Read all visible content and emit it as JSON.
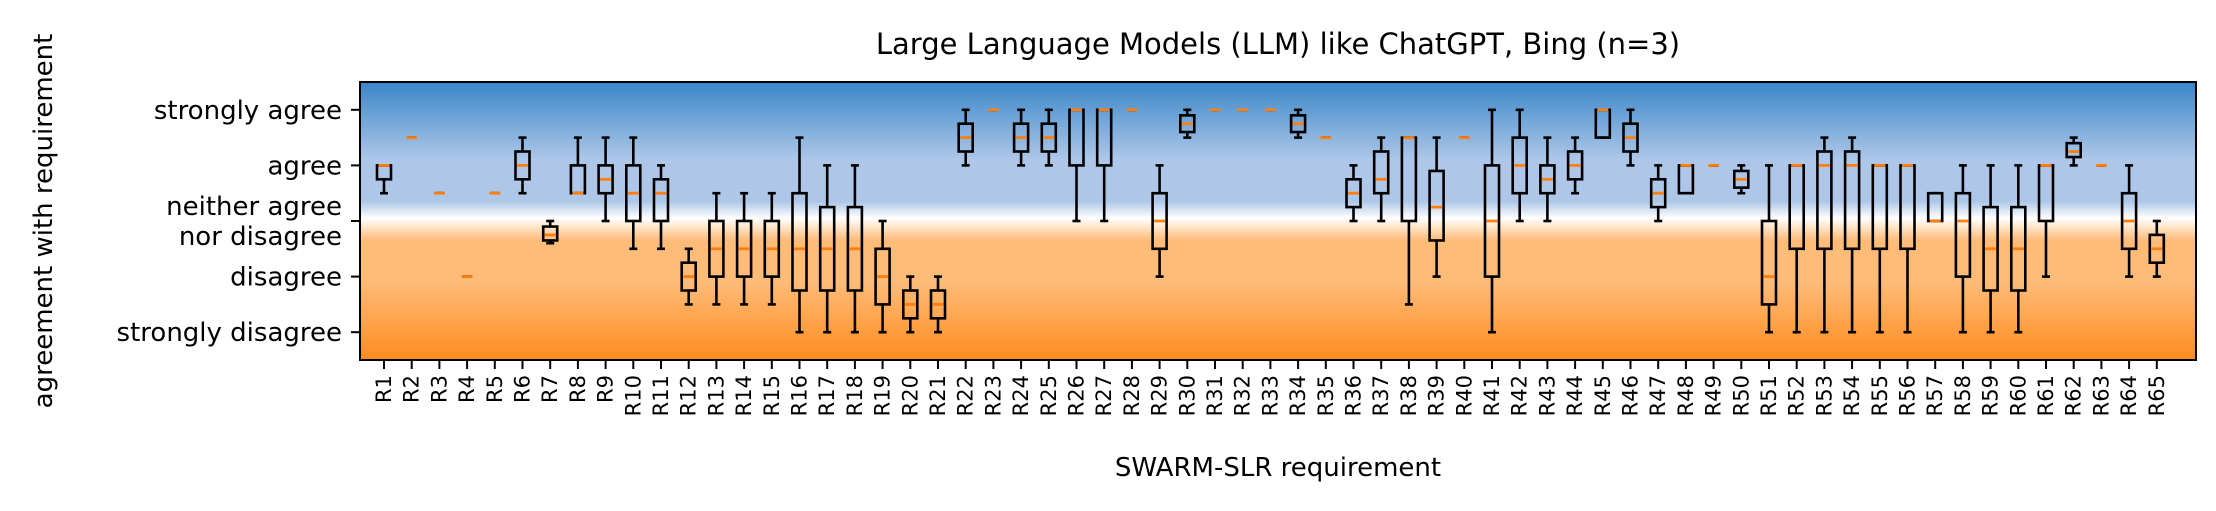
{
  "chart_data": {
    "type": "box",
    "title": "Large Language Models (LLM) like ChatGPT, Bing (n=3)",
    "xlabel": "SWARM-SLR requirement",
    "ylabel": "agreement with requirement",
    "ylim": [
      0.5,
      5.5
    ],
    "y_ticks": [
      {
        "value": 1,
        "lines": [
          "strongly disagree"
        ]
      },
      {
        "value": 2,
        "lines": [
          "disagree"
        ]
      },
      {
        "value": 3,
        "lines": [
          "neither agree",
          "nor disagree"
        ]
      },
      {
        "value": 4,
        "lines": [
          "agree"
        ]
      },
      {
        "value": 5,
        "lines": [
          "strongly agree"
        ]
      }
    ],
    "background_gradient": {
      "top": "#3a86c8",
      "upper": "#aec7e8",
      "middle": "#ffffff",
      "lower": "#ffbb78",
      "bottom": "#ff8c1f"
    },
    "median_color": "#ff7f0e",
    "box_color": "#000000",
    "categories": [
      "R1",
      "R2",
      "R3",
      "R4",
      "R5",
      "R6",
      "R7",
      "R8",
      "R9",
      "R10",
      "R11",
      "R12",
      "R13",
      "R14",
      "R15",
      "R16",
      "R17",
      "R18",
      "R19",
      "R20",
      "R21",
      "R22",
      "R23",
      "R24",
      "R25",
      "R26",
      "R27",
      "R28",
      "R29",
      "R30",
      "R31",
      "R32",
      "R33",
      "R34",
      "R35",
      "R36",
      "R37",
      "R38",
      "R39",
      "R40",
      "R41",
      "R42",
      "R43",
      "R44",
      "R45",
      "R46",
      "R47",
      "R48",
      "R49",
      "R50",
      "R51",
      "R52",
      "R53",
      "R54",
      "R55",
      "R56",
      "R57",
      "R58",
      "R59",
      "R60",
      "R61",
      "R62",
      "R63",
      "R64",
      "R65"
    ],
    "boxes": [
      {
        "whislo": 3.5,
        "q1": 3.75,
        "med": 4.0,
        "q3": 4.0,
        "whishi": 4.0
      },
      {
        "whislo": 4.5,
        "q1": 4.5,
        "med": 4.5,
        "q3": 4.5,
        "whishi": 4.5
      },
      {
        "whislo": 3.5,
        "q1": 3.5,
        "med": 3.5,
        "q3": 3.5,
        "whishi": 3.5
      },
      {
        "whislo": 2.0,
        "q1": 2.0,
        "med": 2.0,
        "q3": 2.0,
        "whishi": 2.0
      },
      {
        "whislo": 3.5,
        "q1": 3.5,
        "med": 3.5,
        "q3": 3.5,
        "whishi": 3.5
      },
      {
        "whislo": 3.5,
        "q1": 3.75,
        "med": 4.0,
        "q3": 4.25,
        "whishi": 4.5
      },
      {
        "whislo": 2.6,
        "q1": 2.65,
        "med": 2.75,
        "q3": 2.9,
        "whishi": 3.0
      },
      {
        "whislo": 3.5,
        "q1": 3.5,
        "med": 3.5,
        "q3": 4.0,
        "whishi": 4.5
      },
      {
        "whislo": 3.0,
        "q1": 3.5,
        "med": 3.75,
        "q3": 4.0,
        "whishi": 4.5
      },
      {
        "whislo": 2.5,
        "q1": 3.0,
        "med": 3.5,
        "q3": 4.0,
        "whishi": 4.5
      },
      {
        "whislo": 2.5,
        "q1": 3.0,
        "med": 3.5,
        "q3": 3.75,
        "whishi": 4.0
      },
      {
        "whislo": 1.5,
        "q1": 1.75,
        "med": 2.0,
        "q3": 2.25,
        "whishi": 2.5
      },
      {
        "whislo": 1.5,
        "q1": 2.0,
        "med": 2.5,
        "q3": 3.0,
        "whishi": 3.5
      },
      {
        "whislo": 1.5,
        "q1": 2.0,
        "med": 2.5,
        "q3": 3.0,
        "whishi": 3.5
      },
      {
        "whislo": 1.5,
        "q1": 2.0,
        "med": 2.5,
        "q3": 3.0,
        "whishi": 3.5
      },
      {
        "whislo": 1.0,
        "q1": 1.75,
        "med": 2.5,
        "q3": 3.5,
        "whishi": 4.5
      },
      {
        "whislo": 1.0,
        "q1": 1.75,
        "med": 2.5,
        "q3": 3.25,
        "whishi": 4.0
      },
      {
        "whislo": 1.0,
        "q1": 1.75,
        "med": 2.5,
        "q3": 3.25,
        "whishi": 4.0
      },
      {
        "whislo": 1.0,
        "q1": 1.5,
        "med": 2.0,
        "q3": 2.5,
        "whishi": 3.0
      },
      {
        "whislo": 1.0,
        "q1": 1.25,
        "med": 1.5,
        "q3": 1.75,
        "whishi": 2.0
      },
      {
        "whislo": 1.0,
        "q1": 1.25,
        "med": 1.5,
        "q3": 1.75,
        "whishi": 2.0
      },
      {
        "whislo": 4.0,
        "q1": 4.25,
        "med": 4.5,
        "q3": 4.75,
        "whishi": 5.0
      },
      {
        "whislo": 5.0,
        "q1": 5.0,
        "med": 5.0,
        "q3": 5.0,
        "whishi": 5.0
      },
      {
        "whislo": 4.0,
        "q1": 4.25,
        "med": 4.5,
        "q3": 4.75,
        "whishi": 5.0
      },
      {
        "whislo": 4.0,
        "q1": 4.25,
        "med": 4.5,
        "q3": 4.75,
        "whishi": 5.0
      },
      {
        "whislo": 3.0,
        "q1": 4.0,
        "med": 5.0,
        "q3": 5.0,
        "whishi": 5.0
      },
      {
        "whislo": 3.0,
        "q1": 4.0,
        "med": 5.0,
        "q3": 5.0,
        "whishi": 5.0
      },
      {
        "whislo": 5.0,
        "q1": 5.0,
        "med": 5.0,
        "q3": 5.0,
        "whishi": 5.0
      },
      {
        "whislo": 2.0,
        "q1": 2.5,
        "med": 3.0,
        "q3": 3.5,
        "whishi": 4.0
      },
      {
        "whislo": 4.5,
        "q1": 4.6,
        "med": 4.75,
        "q3": 4.9,
        "whishi": 5.0
      },
      {
        "whislo": 5.0,
        "q1": 5.0,
        "med": 5.0,
        "q3": 5.0,
        "whishi": 5.0
      },
      {
        "whislo": 5.0,
        "q1": 5.0,
        "med": 5.0,
        "q3": 5.0,
        "whishi": 5.0
      },
      {
        "whislo": 5.0,
        "q1": 5.0,
        "med": 5.0,
        "q3": 5.0,
        "whishi": 5.0
      },
      {
        "whislo": 4.5,
        "q1": 4.6,
        "med": 4.75,
        "q3": 4.9,
        "whishi": 5.0
      },
      {
        "whislo": 4.5,
        "q1": 4.5,
        "med": 4.5,
        "q3": 4.5,
        "whishi": 4.5
      },
      {
        "whislo": 3.0,
        "q1": 3.25,
        "med": 3.5,
        "q3": 3.75,
        "whishi": 4.0
      },
      {
        "whislo": 3.0,
        "q1": 3.5,
        "med": 3.75,
        "q3": 4.25,
        "whishi": 4.5
      },
      {
        "whislo": 1.5,
        "q1": 3.0,
        "med": 4.5,
        "q3": 4.5,
        "whishi": 4.5
      },
      {
        "whislo": 2.0,
        "q1": 2.65,
        "med": 3.25,
        "q3": 3.9,
        "whishi": 4.5
      },
      {
        "whislo": 4.5,
        "q1": 4.5,
        "med": 4.5,
        "q3": 4.5,
        "whishi": 4.5
      },
      {
        "whislo": 1.0,
        "q1": 2.0,
        "med": 3.0,
        "q3": 4.0,
        "whishi": 5.0
      },
      {
        "whislo": 3.0,
        "q1": 3.5,
        "med": 4.0,
        "q3": 4.5,
        "whishi": 5.0
      },
      {
        "whislo": 3.0,
        "q1": 3.5,
        "med": 3.75,
        "q3": 4.0,
        "whishi": 4.5
      },
      {
        "whislo": 3.5,
        "q1": 3.75,
        "med": 4.0,
        "q3": 4.25,
        "whishi": 4.5
      },
      {
        "whislo": 4.5,
        "q1": 4.5,
        "med": 5.0,
        "q3": 5.0,
        "whishi": 5.0
      },
      {
        "whislo": 4.0,
        "q1": 4.25,
        "med": 4.5,
        "q3": 4.75,
        "whishi": 5.0
      },
      {
        "whislo": 3.0,
        "q1": 3.25,
        "med": 3.5,
        "q3": 3.75,
        "whishi": 4.0
      },
      {
        "whislo": 3.5,
        "q1": 3.5,
        "med": 4.0,
        "q3": 4.0,
        "whishi": 4.0
      },
      {
        "whislo": 4.0,
        "q1": 4.0,
        "med": 4.0,
        "q3": 4.0,
        "whishi": 4.0
      },
      {
        "whislo": 3.5,
        "q1": 3.6,
        "med": 3.75,
        "q3": 3.9,
        "whishi": 4.0
      },
      {
        "whislo": 1.0,
        "q1": 1.5,
        "med": 2.0,
        "q3": 3.0,
        "whishi": 4.0
      },
      {
        "whislo": 1.0,
        "q1": 2.5,
        "med": 4.0,
        "q3": 4.0,
        "whishi": 4.0
      },
      {
        "whislo": 1.0,
        "q1": 2.5,
        "med": 4.0,
        "q3": 4.25,
        "whishi": 4.5
      },
      {
        "whislo": 1.0,
        "q1": 2.5,
        "med": 4.0,
        "q3": 4.25,
        "whishi": 4.5
      },
      {
        "whislo": 1.0,
        "q1": 2.5,
        "med": 4.0,
        "q3": 4.0,
        "whishi": 4.0
      },
      {
        "whislo": 1.0,
        "q1": 2.5,
        "med": 4.0,
        "q3": 4.0,
        "whishi": 4.0
      },
      {
        "whislo": 3.0,
        "q1": 3.0,
        "med": 3.0,
        "q3": 3.5,
        "whishi": 3.5
      },
      {
        "whislo": 1.0,
        "q1": 2.0,
        "med": 3.0,
        "q3": 3.5,
        "whishi": 4.0
      },
      {
        "whislo": 1.0,
        "q1": 1.75,
        "med": 2.5,
        "q3": 3.25,
        "whishi": 4.0
      },
      {
        "whislo": 1.0,
        "q1": 1.75,
        "med": 2.5,
        "q3": 3.25,
        "whishi": 4.0
      },
      {
        "whislo": 2.0,
        "q1": 3.0,
        "med": 4.0,
        "q3": 4.0,
        "whishi": 4.0
      },
      {
        "whislo": 4.0,
        "q1": 4.15,
        "med": 4.25,
        "q3": 4.4,
        "whishi": 4.5
      },
      {
        "whislo": 4.0,
        "q1": 4.0,
        "med": 4.0,
        "q3": 4.0,
        "whishi": 4.0
      },
      {
        "whislo": 2.0,
        "q1": 2.5,
        "med": 3.0,
        "q3": 3.5,
        "whishi": 4.0
      },
      {
        "whislo": 2.0,
        "q1": 2.25,
        "med": 2.5,
        "q3": 2.75,
        "whishi": 3.0
      }
    ]
  }
}
